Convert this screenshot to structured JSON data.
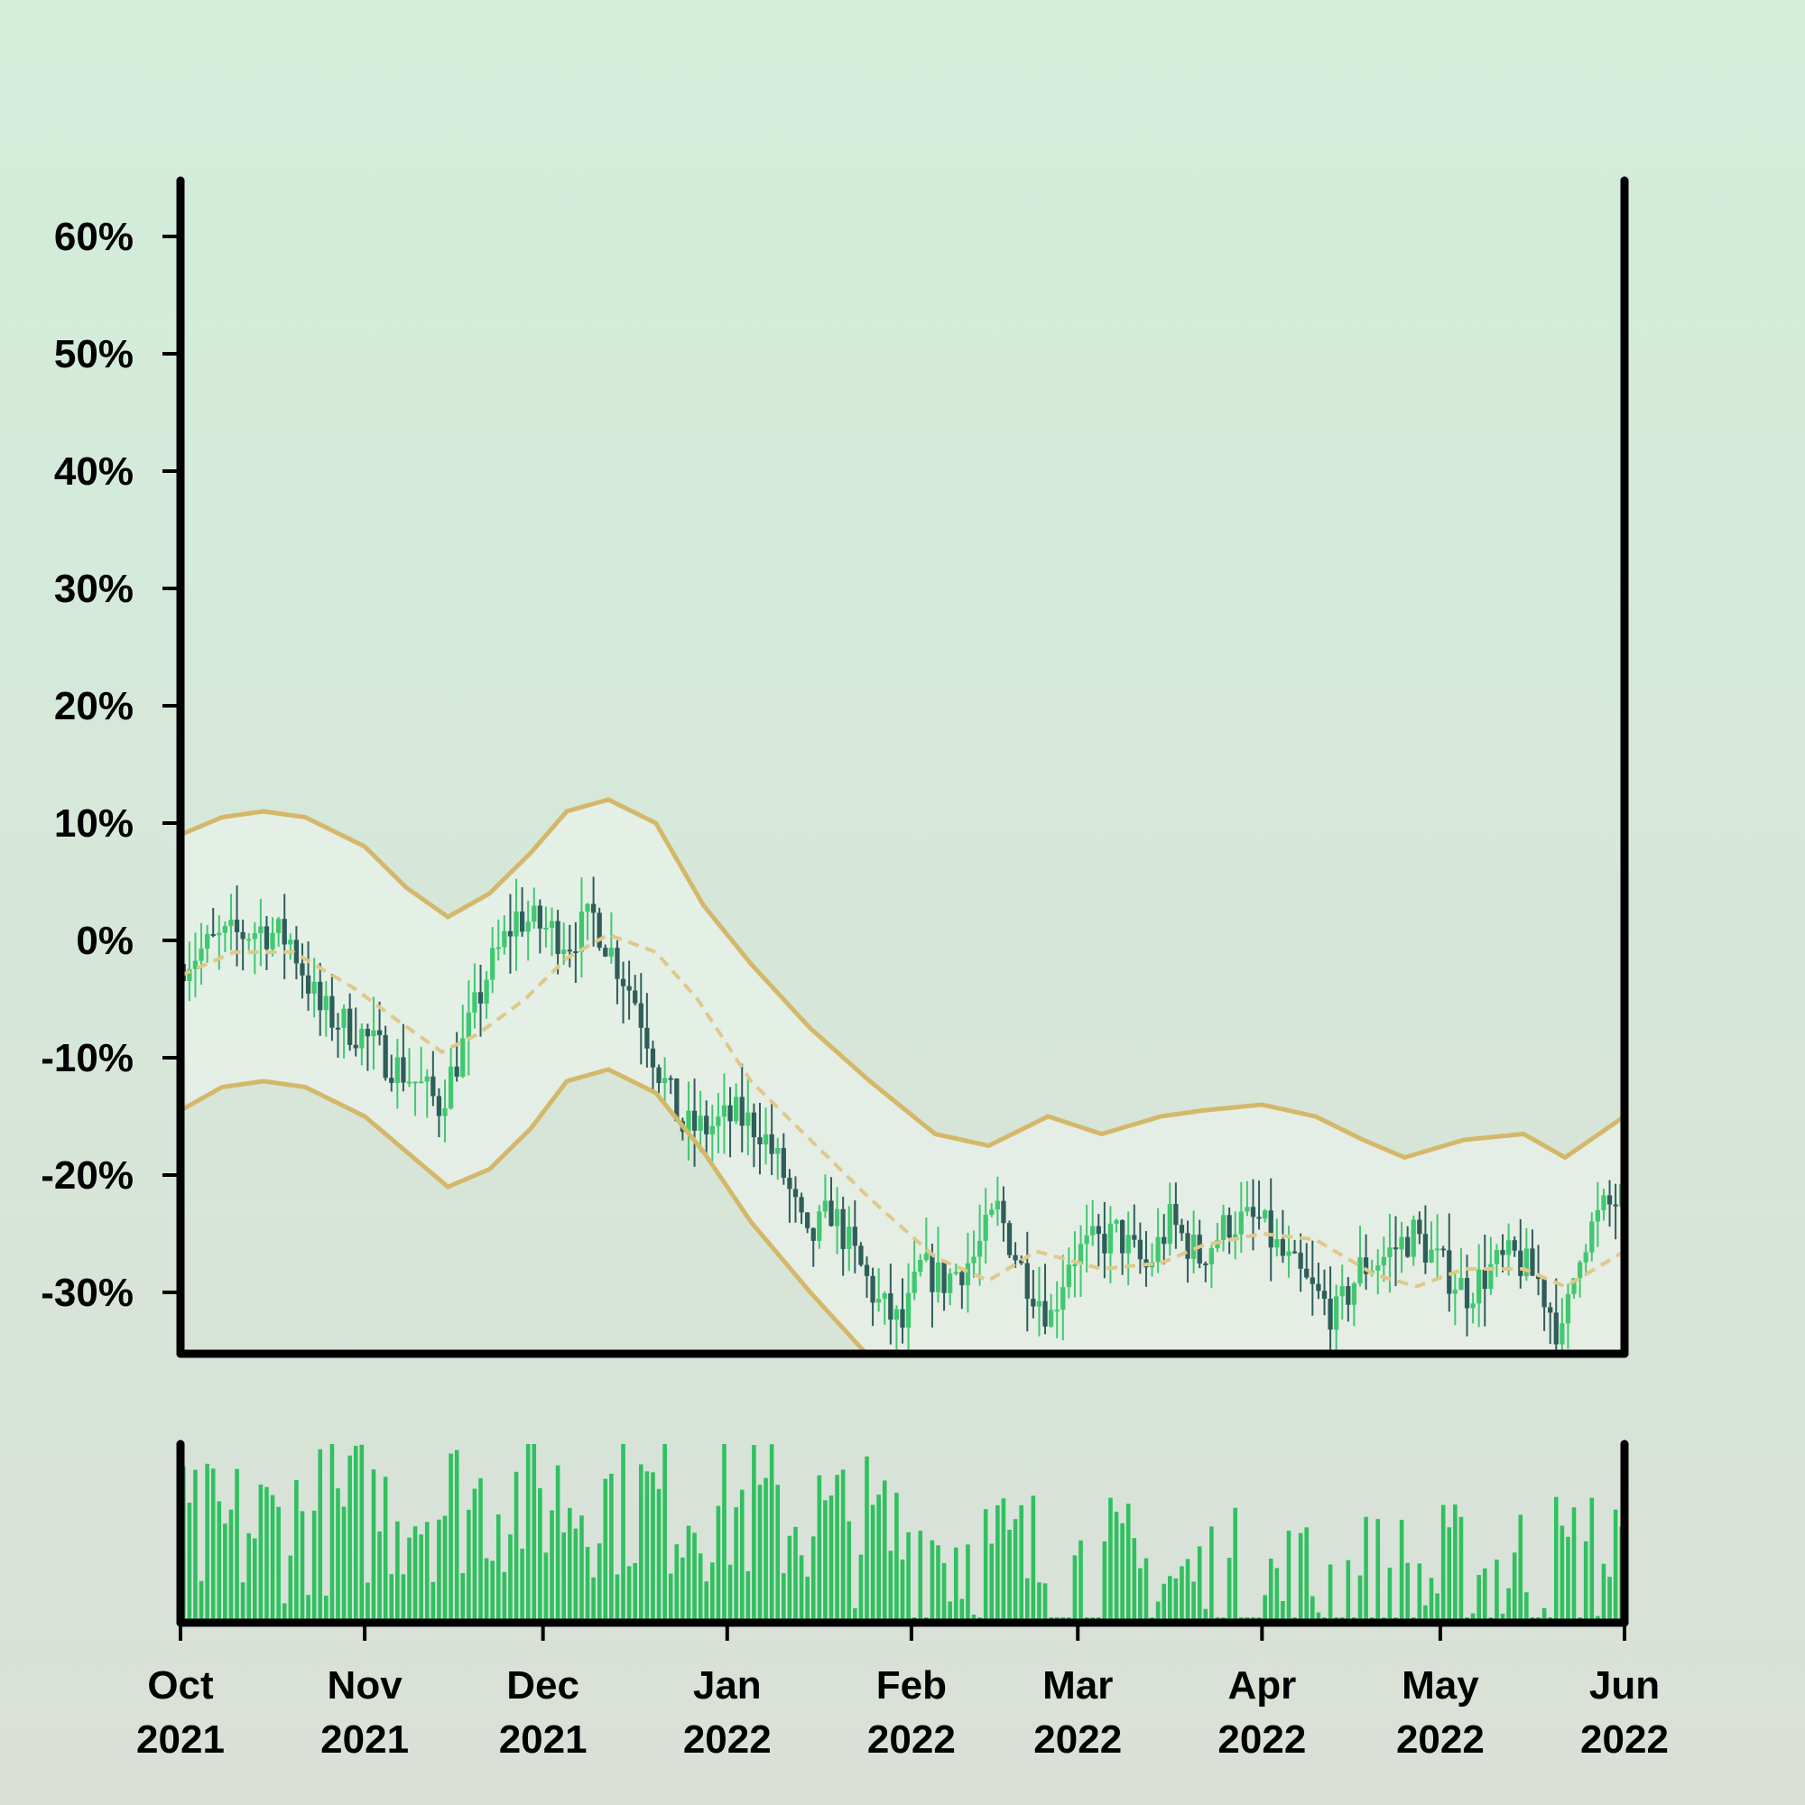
{
  "chart_data": {
    "type": "candlestick",
    "title": "",
    "xlabel": "",
    "ylabel": "",
    "y_unit": "%",
    "x_range": [
      "2021-10-01",
      "2022-06-01"
    ],
    "ylim": [
      -35,
      65
    ],
    "y_ticks": [
      60,
      50,
      40,
      30,
      20,
      10,
      0,
      -10,
      -20,
      -30
    ],
    "y_tick_labels": [
      "60%",
      "50%",
      "40%",
      "30%",
      "20%",
      "10%",
      "0%",
      "-10%",
      "-20%",
      "-30%"
    ],
    "x_ticks": [
      {
        "line1": "Oct",
        "line2": "2021",
        "date": "2021-10-01"
      },
      {
        "line1": "Nov",
        "line2": "2021",
        "date": "2021-11-01"
      },
      {
        "line1": "Dec",
        "line2": "2021",
        "date": "2021-12-01"
      },
      {
        "line1": "Jan",
        "line2": "2022",
        "date": "2022-01-01"
      },
      {
        "line1": "Feb",
        "line2": "2022",
        "date": "2022-02-01"
      },
      {
        "line1": "Mar",
        "line2": "2022",
        "date": "2022-03-01"
      },
      {
        "line1": "Apr",
        "line2": "2022",
        "date": "2022-04-01"
      },
      {
        "line1": "May",
        "line2": "2022",
        "date": "2022-05-01"
      },
      {
        "line1": "Jun",
        "line2": "2022",
        "date": "2022-06-01"
      }
    ],
    "close_path": [
      [
        "2021-10-01",
        -2
      ],
      [
        "2021-10-08",
        0
      ],
      [
        "2021-10-15",
        1
      ],
      [
        "2021-10-20",
        0
      ],
      [
        "2021-10-25",
        -6
      ],
      [
        "2021-11-01",
        -8
      ],
      [
        "2021-11-05",
        -10
      ],
      [
        "2021-11-10",
        -12
      ],
      [
        "2021-11-14",
        -14
      ],
      [
        "2021-11-18",
        -9
      ],
      [
        "2021-11-22",
        -3
      ],
      [
        "2021-11-27",
        2
      ],
      [
        "2021-12-02",
        1
      ],
      [
        "2021-12-06",
        0
      ],
      [
        "2021-12-10",
        2
      ],
      [
        "2021-12-13",
        -1
      ],
      [
        "2021-12-17",
        -5
      ],
      [
        "2021-12-21",
        -11
      ],
      [
        "2021-12-25",
        -16
      ],
      [
        "2021-12-29",
        -16
      ],
      [
        "2022-01-03",
        -15
      ],
      [
        "2022-01-07",
        -16
      ],
      [
        "2022-01-11",
        -20
      ],
      [
        "2022-01-15",
        -26
      ],
      [
        "2022-01-19",
        -23
      ],
      [
        "2022-01-23",
        -27
      ],
      [
        "2022-01-27",
        -31
      ],
      [
        "2022-01-31",
        -33
      ],
      [
        "2022-02-03",
        -28
      ],
      [
        "2022-02-07",
        -29
      ],
      [
        "2022-02-12",
        -27
      ],
      [
        "2022-02-16",
        -23
      ],
      [
        "2022-02-20",
        -28
      ],
      [
        "2022-02-25",
        -32
      ],
      [
        "2022-02-28",
        -27
      ],
      [
        "2022-03-04",
        -26
      ],
      [
        "2022-03-08",
        -25
      ],
      [
        "2022-03-13",
        -28
      ],
      [
        "2022-03-17",
        -24
      ],
      [
        "2022-03-22",
        -27
      ],
      [
        "2022-03-27",
        -24
      ],
      [
        "2022-04-01",
        -24
      ],
      [
        "2022-04-05",
        -27
      ],
      [
        "2022-04-10",
        -30
      ],
      [
        "2022-04-14",
        -32
      ],
      [
        "2022-04-18",
        -28
      ],
      [
        "2022-04-22",
        -27
      ],
      [
        "2022-04-27",
        -25
      ],
      [
        "2022-05-02",
        -28
      ],
      [
        "2022-05-06",
        -30
      ],
      [
        "2022-05-10",
        -28
      ],
      [
        "2022-05-14",
        -27
      ],
      [
        "2022-05-18",
        -29
      ],
      [
        "2022-05-22",
        -34
      ],
      [
        "2022-05-25",
        -26
      ],
      [
        "2022-05-29",
        -23
      ],
      [
        "2022-06-01",
        -22
      ]
    ],
    "ma_path": [
      [
        "2021-10-01",
        -3
      ],
      [
        "2021-10-10",
        -1
      ],
      [
        "2021-10-20",
        -1
      ],
      [
        "2021-10-30",
        -4
      ],
      [
        "2021-11-07",
        -7
      ],
      [
        "2021-11-14",
        -9.5
      ],
      [
        "2021-11-20",
        -8
      ],
      [
        "2021-11-28",
        -5
      ],
      [
        "2021-12-05",
        -1.5
      ],
      [
        "2021-12-12",
        0.5
      ],
      [
        "2021-12-20",
        -1
      ],
      [
        "2021-12-27",
        -5
      ],
      [
        "2022-01-05",
        -12
      ],
      [
        "2022-01-15",
        -17
      ],
      [
        "2022-01-25",
        -22
      ],
      [
        "2022-02-05",
        -27
      ],
      [
        "2022-02-14",
        -29
      ],
      [
        "2022-02-22",
        -26.5
      ],
      [
        "2022-03-05",
        -28
      ],
      [
        "2022-03-15",
        -27.5
      ],
      [
        "2022-03-22",
        -26
      ],
      [
        "2022-04-01",
        -25
      ],
      [
        "2022-04-10",
        -25.5
      ],
      [
        "2022-04-20",
        -28.5
      ],
      [
        "2022-04-27",
        -29.5
      ],
      [
        "2022-05-05",
        -28
      ],
      [
        "2022-05-15",
        -28
      ],
      [
        "2022-05-22",
        -29.5
      ],
      [
        "2022-06-01",
        -26.5
      ]
    ],
    "upper_band": [
      [
        "2021-10-01",
        9
      ],
      [
        "2021-10-08",
        10.5
      ],
      [
        "2021-10-15",
        11
      ],
      [
        "2021-10-22",
        10.5
      ],
      [
        "2021-11-01",
        8
      ],
      [
        "2021-11-08",
        4.5
      ],
      [
        "2021-11-15",
        2
      ],
      [
        "2021-11-22",
        4
      ],
      [
        "2021-11-29",
        7.5
      ],
      [
        "2021-12-05",
        11
      ],
      [
        "2021-12-12",
        12
      ],
      [
        "2021-12-20",
        10
      ],
      [
        "2021-12-28",
        3
      ],
      [
        "2022-01-05",
        -2
      ],
      [
        "2022-01-15",
        -7.5
      ],
      [
        "2022-01-25",
        -12
      ],
      [
        "2022-02-05",
        -16.5
      ],
      [
        "2022-02-14",
        -17.5
      ],
      [
        "2022-02-24",
        -15
      ],
      [
        "2022-03-05",
        -16.5
      ],
      [
        "2022-03-15",
        -15
      ],
      [
        "2022-03-22",
        -14.5
      ],
      [
        "2022-04-01",
        -14
      ],
      [
        "2022-04-10",
        -15
      ],
      [
        "2022-04-18",
        -17
      ],
      [
        "2022-04-25",
        -18.5
      ],
      [
        "2022-05-05",
        -17
      ],
      [
        "2022-05-15",
        -16.5
      ],
      [
        "2022-05-22",
        -18.5
      ],
      [
        "2022-06-01",
        -15
      ]
    ],
    "lower_band": [
      [
        "2021-10-01",
        -14.5
      ],
      [
        "2021-10-08",
        -12.5
      ],
      [
        "2021-10-15",
        -12
      ],
      [
        "2021-10-22",
        -12.5
      ],
      [
        "2021-11-01",
        -15
      ],
      [
        "2021-11-08",
        -18
      ],
      [
        "2021-11-15",
        -21
      ],
      [
        "2021-11-22",
        -19.5
      ],
      [
        "2021-11-29",
        -16
      ],
      [
        "2021-12-05",
        -12
      ],
      [
        "2021-12-12",
        -11
      ],
      [
        "2021-12-20",
        -13
      ],
      [
        "2021-12-28",
        -18
      ],
      [
        "2022-01-05",
        -24
      ],
      [
        "2022-01-15",
        -30
      ],
      [
        "2022-01-24",
        -35
      ]
    ],
    "volume": {
      "ylim": [
        0,
        100
      ],
      "level": "relative"
    },
    "colors": {
      "background_top": "#d2eedb",
      "background_bottom": "#dae0d7",
      "up_candle": "#40c870",
      "down_candle": "#2e5e5a",
      "band": "#d4b86a",
      "moving_average": "#e0c88a",
      "band_fill": "#ffffff",
      "volume_bar": "#30c060",
      "axis": "#000000"
    }
  }
}
